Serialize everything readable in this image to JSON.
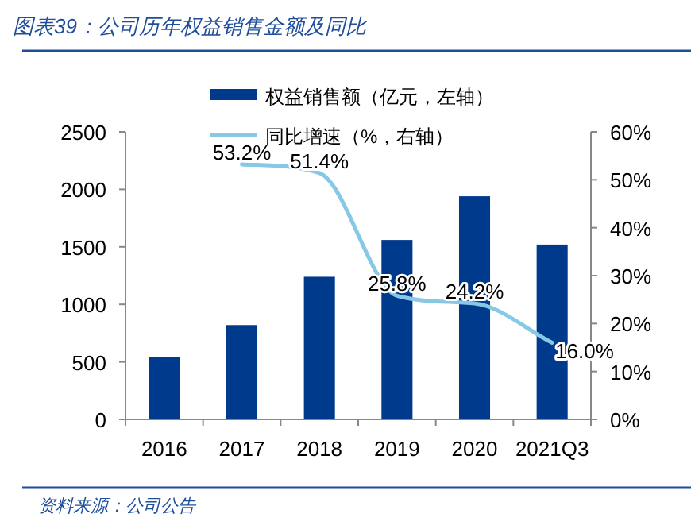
{
  "chart_data": {
    "type": "bar",
    "title": "图表39：公司历年权益销售金额及同比",
    "categories": [
      "2016",
      "2017",
      "2018",
      "2019",
      "2020",
      "2021Q3"
    ],
    "series": [
      {
        "name": "权益销售额（亿元，左轴）",
        "color": "#003a8c",
        "values": [
          540,
          820,
          1240,
          1560,
          1940,
          1520
        ]
      },
      {
        "name": "同比增速（%，右轴）",
        "type": "line",
        "axis": "y2",
        "color": "#87c8e4",
        "values": [
          null,
          53.2,
          51.4,
          25.8,
          24.2,
          16.0
        ],
        "value_labels": [
          null,
          "53.2%",
          "51.4%",
          "25.8%",
          "24.2%",
          "16.0%"
        ]
      }
    ],
    "ylim": [
      0,
      2500
    ],
    "yticks": [
      0,
      500,
      1000,
      1500,
      2000,
      2500
    ],
    "y2lim": [
      0,
      60
    ],
    "y2ticks": [
      {
        "value": 0,
        "label": "0%"
      },
      {
        "value": 10,
        "label": "10%"
      },
      {
        "value": 20,
        "label": "20%"
      },
      {
        "value": 30,
        "label": "30%"
      },
      {
        "value": 40,
        "label": "40%"
      },
      {
        "value": 50,
        "label": "50%"
      },
      {
        "value": 60,
        "label": "60%"
      }
    ],
    "legend": "top",
    "grid": false,
    "annotations": [
      "资料来源：公司公告"
    ]
  }
}
